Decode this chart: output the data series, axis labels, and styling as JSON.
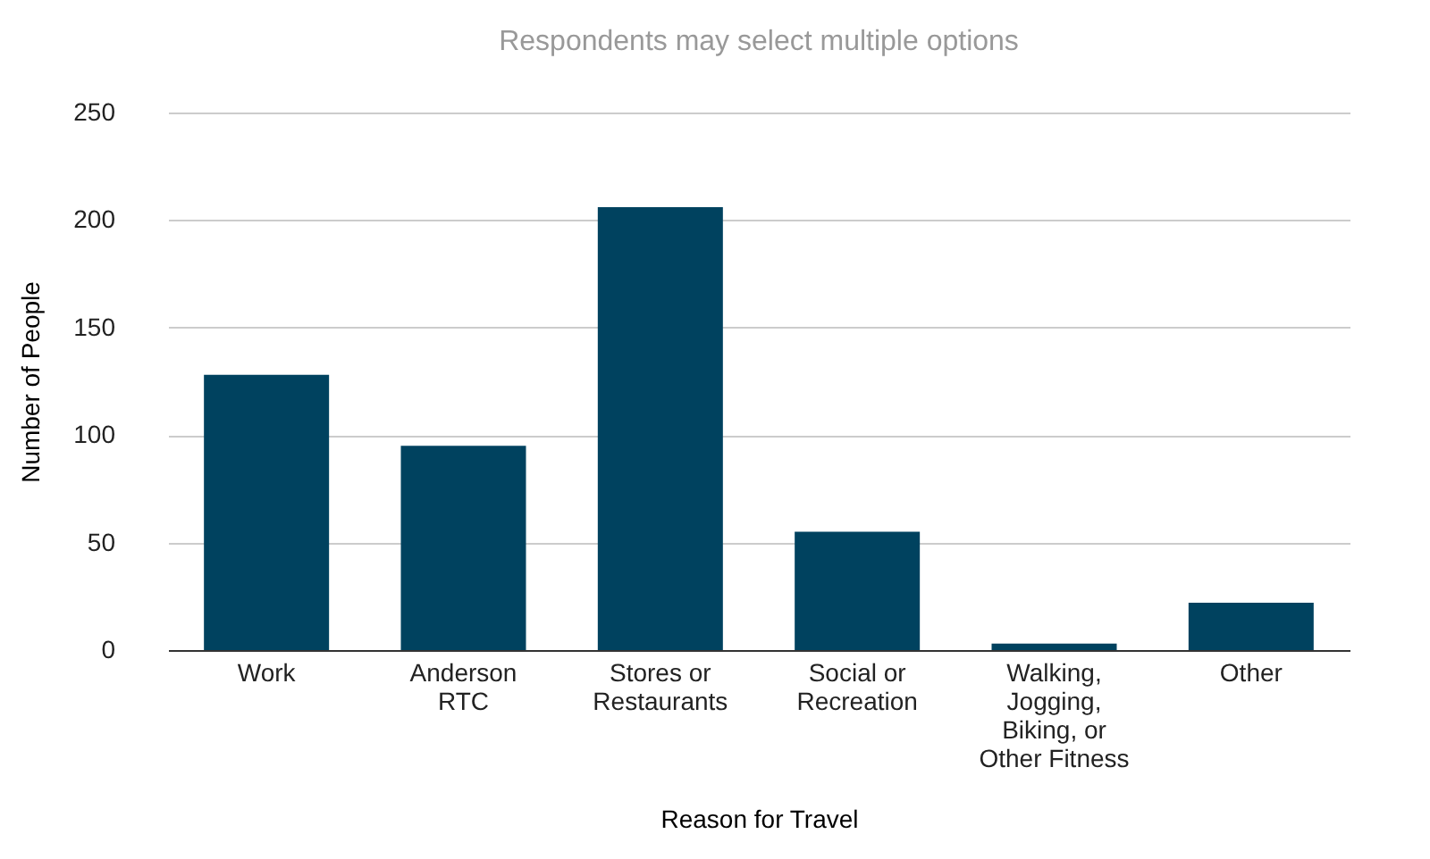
{
  "chart_data": {
    "type": "bar",
    "title": "Respondents may select multiple options",
    "categories": [
      "Work",
      "Anderson\nRTC",
      "Stores or\nRestaurants",
      "Social or\nRecreation",
      "Walking,\nJogging,\nBiking, or\nOther Fitness",
      "Other"
    ],
    "values": [
      128,
      95,
      206,
      55,
      3,
      22
    ],
    "color": "#00425f",
    "xlabel": "Reason for Travel",
    "ylabel": "Number of People",
    "ylim": [
      0,
      250
    ],
    "yticks": [
      0,
      50,
      100,
      150,
      200,
      250
    ],
    "grid": "y"
  }
}
